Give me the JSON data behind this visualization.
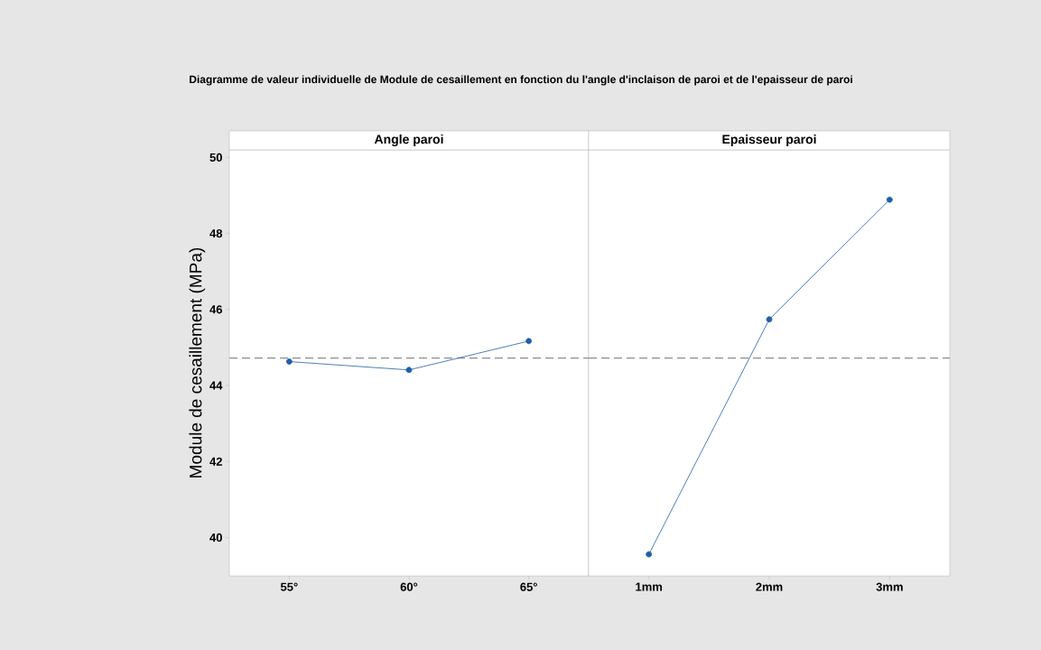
{
  "chart_data": [
    {
      "type": "line",
      "title": "Diagramme de valeur individuelle de Module de cesaillement en fonction du l'angle d'inclaison de paroi et de l'epaisseur de paroi",
      "subtitle": "Angle paroi",
      "ylabel": "Module de cesaillement (MPa)",
      "categories": [
        "55°",
        "60°",
        "65°"
      ],
      "values": [
        44.63,
        44.41,
        45.17
      ],
      "color": "#1f5fa8",
      "marker": "circle",
      "ylim": [
        38.99,
        50.2
      ],
      "yticks": [
        40,
        42,
        44,
        46,
        48,
        50
      ],
      "ref_lines": [
        {
          "axis": "y",
          "value": 44.72,
          "color": "#8c8c8c",
          "line_style": "dashed"
        }
      ]
    },
    {
      "type": "line",
      "subtitle": "Epaisseur paroi",
      "categories": [
        "1mm",
        "2mm",
        "3mm"
      ],
      "values": [
        39.56,
        45.74,
        48.89
      ],
      "color": "#1f5fa8",
      "marker": "circle",
      "ylim": [
        38.99,
        50.2
      ],
      "yticks": [
        40,
        42,
        44,
        46,
        48,
        50
      ],
      "tick_labels": "x",
      "ref_lines": [
        {
          "axis": "y",
          "value": 44.72,
          "color": "#8c8c8c",
          "line_style": "dashed"
        }
      ]
    }
  ]
}
